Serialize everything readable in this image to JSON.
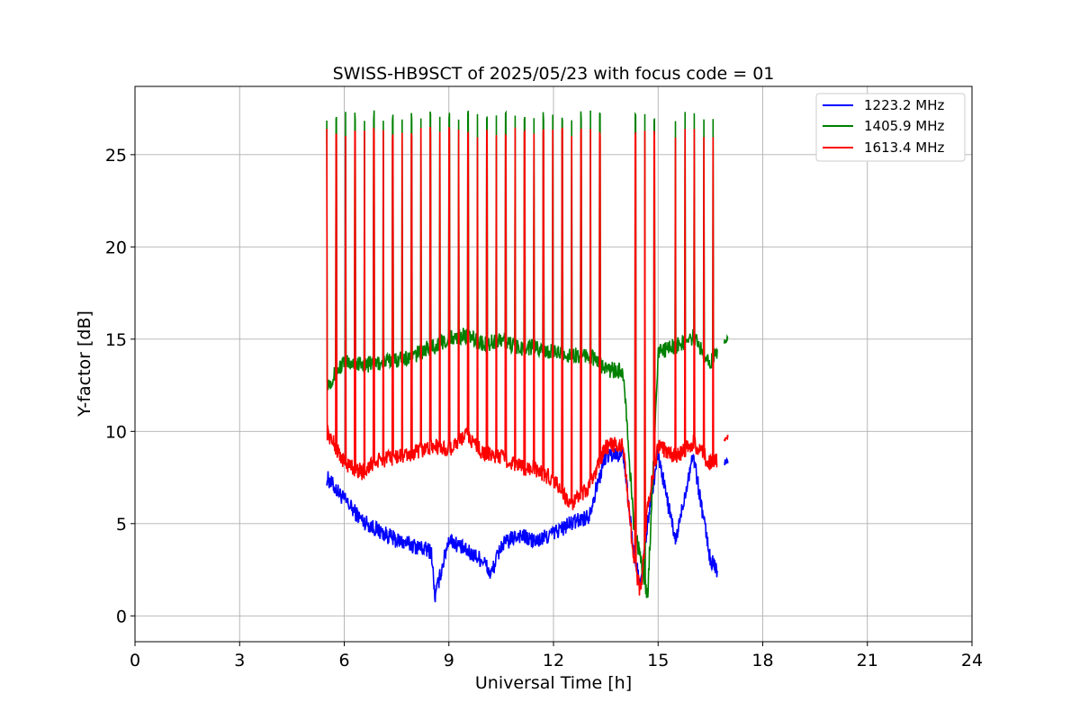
{
  "chart_data": {
    "type": "line",
    "title": "SWISS-HB9SCT of 2025/05/23 with focus code = 01",
    "xlabel": "Universal Time [h]",
    "ylabel": "Y-factor [dB]",
    "xlim": [
      0,
      24
    ],
    "ylim": [
      -1.4,
      28.7
    ],
    "xticks": [
      0,
      3,
      6,
      9,
      12,
      15,
      18,
      21,
      24
    ],
    "yticks": [
      0,
      5,
      10,
      15,
      20,
      25
    ],
    "grid": true,
    "legend_position": "top-right",
    "spike_times": [
      5.5,
      5.77,
      6.04,
      6.31,
      6.58,
      6.85,
      7.12,
      7.39,
      7.66,
      7.93,
      8.2,
      8.47,
      8.74,
      9.01,
      9.28,
      9.55,
      9.82,
      10.09,
      10.36,
      10.63,
      10.9,
      11.17,
      11.44,
      11.71,
      11.98,
      12.25,
      12.52,
      12.79,
      13.06,
      13.33,
      14.35,
      14.62,
      14.89,
      15.5,
      15.77,
      16.04,
      16.31,
      16.58
    ],
    "series": [
      {
        "name": "1223.2 MHz",
        "color": "#0000ff",
        "x": [
          5.5,
          6.0,
          6.5,
          7.0,
          7.5,
          8.0,
          8.5,
          8.6,
          9.0,
          9.5,
          10.0,
          10.2,
          10.5,
          11.0,
          11.5,
          12.0,
          12.5,
          13.0,
          13.5,
          14.0,
          14.3,
          14.5,
          14.7,
          15.0,
          15.5,
          16.0,
          16.5,
          16.7
        ],
        "y": [
          7.5,
          6.3,
          5.2,
          4.6,
          4.1,
          3.8,
          3.5,
          1.0,
          4.2,
          3.5,
          3.0,
          2.2,
          3.8,
          4.4,
          4.0,
          4.5,
          5.0,
          5.4,
          8.7,
          8.8,
          3.5,
          1.5,
          5.0,
          8.8,
          4.0,
          8.8,
          3.0,
          2.5
        ],
        "endpoint_x": [
          16.9,
          17.0
        ],
        "endpoint_y": [
          8.3,
          8.4
        ]
      },
      {
        "name": "1405.9 MHz",
        "color": "#008000",
        "x": [
          5.5,
          6.0,
          6.5,
          7.0,
          7.5,
          8.0,
          8.5,
          9.0,
          9.5,
          10.0,
          10.5,
          11.0,
          11.5,
          12.0,
          12.5,
          13.0,
          13.5,
          14.0,
          14.3,
          14.5,
          14.7,
          15.0,
          15.5,
          16.0,
          16.5,
          16.7
        ],
        "y": [
          12.5,
          13.8,
          13.6,
          13.7,
          13.9,
          14.1,
          14.6,
          15.0,
          15.2,
          14.7,
          15.0,
          14.5,
          14.6,
          14.3,
          14.1,
          14.2,
          13.4,
          13.2,
          5.0,
          3.0,
          1.0,
          14.3,
          14.6,
          15.1,
          13.8,
          14.2
        ],
        "endpoint_x": [
          16.9,
          17.0
        ],
        "endpoint_y": [
          14.9,
          15.0
        ]
      },
      {
        "name": "1613.4 MHz",
        "color": "#ff0000",
        "x": [
          5.5,
          6.0,
          6.5,
          7.0,
          7.5,
          8.0,
          8.5,
          9.0,
          9.5,
          10.0,
          10.5,
          11.0,
          11.5,
          12.0,
          12.5,
          13.0,
          13.5,
          14.0,
          14.3,
          14.5,
          14.7,
          15.0,
          15.5,
          16.0,
          16.5,
          16.7
        ],
        "y": [
          10.0,
          8.3,
          7.8,
          8.4,
          8.6,
          8.8,
          9.2,
          9.0,
          9.8,
          8.8,
          8.6,
          8.1,
          7.9,
          7.4,
          6.0,
          6.9,
          9.2,
          9.3,
          3.0,
          1.2,
          6.0,
          9.2,
          8.6,
          9.4,
          8.3,
          8.5
        ],
        "endpoint_x": [
          16.9,
          17.0
        ],
        "endpoint_y": [
          9.6,
          9.7
        ]
      }
    ],
    "spike_peaks": {
      "1405.9 MHz": 27.1,
      "1613.4 MHz": 26.2
    }
  }
}
